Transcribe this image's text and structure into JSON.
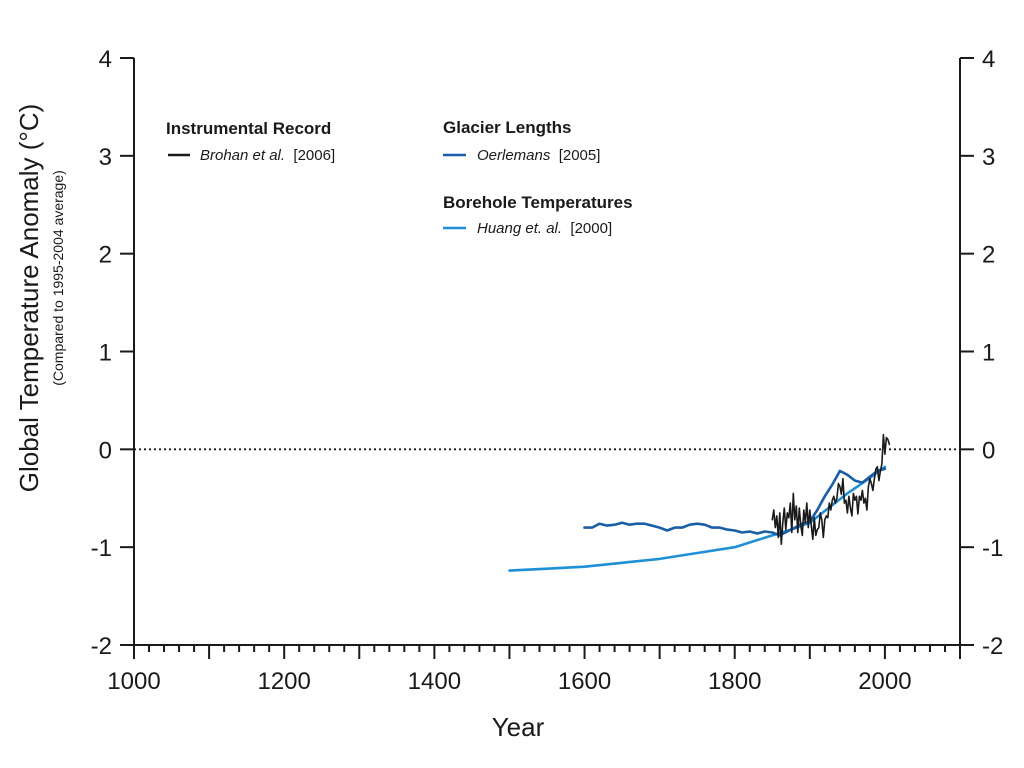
{
  "chart_data": {
    "type": "line",
    "xlabel": "Year",
    "ylabel": "Global Temperature Anomaly (°C)",
    "ylabel_note": "(Compared to 1995-2004 average)",
    "xlim": [
      1000,
      2100
    ],
    "ylim": [
      -2,
      4
    ],
    "x_ticks": [
      "1000",
      "1200",
      "1400",
      "1600",
      "1800",
      "2000"
    ],
    "y_ticks": [
      "-2",
      "-1",
      "0",
      "1",
      "2",
      "3",
      "4"
    ],
    "reference_line": {
      "y": 0,
      "style": "dotted"
    },
    "grid": false,
    "legend_groups": [
      {
        "heading": "Instrumental Record",
        "author": "Brohan et al.",
        "ref": "[2006]",
        "series": "Instrumental Record"
      },
      {
        "heading": "Glacier Lengths",
        "author": "Oerlemans",
        "ref": "[2005]",
        "series": "Glacier Lengths"
      },
      {
        "heading": "Borehole Temperatures",
        "author": "Huang et. al.",
        "ref": "[2000]",
        "series": "Borehole Temperatures"
      }
    ],
    "series": [
      {
        "name": "Borehole Temperatures",
        "color": "#1f8fd6",
        "x": [
          1500,
          1550,
          1600,
          1650,
          1700,
          1750,
          1800,
          1825,
          1850,
          1875,
          1900,
          1925,
          1950,
          1975,
          2000
        ],
        "y": [
          -1.24,
          -1.22,
          -1.2,
          -1.16,
          -1.12,
          -1.06,
          -1.0,
          -0.94,
          -0.88,
          -0.82,
          -0.75,
          -0.6,
          -0.45,
          -0.32,
          -0.18
        ]
      },
      {
        "name": "Glacier Lengths",
        "color": "#1b5ea8",
        "x": [
          1600,
          1610,
          1620,
          1630,
          1640,
          1650,
          1660,
          1670,
          1680,
          1690,
          1700,
          1710,
          1720,
          1730,
          1740,
          1750,
          1760,
          1770,
          1780,
          1790,
          1800,
          1810,
          1820,
          1830,
          1840,
          1850,
          1860,
          1870,
          1880,
          1890,
          1900,
          1910,
          1920,
          1930,
          1940,
          1950,
          1960,
          1970,
          1980,
          1990,
          2000
        ],
        "y": [
          -0.8,
          -0.8,
          -0.76,
          -0.78,
          -0.77,
          -0.75,
          -0.77,
          -0.76,
          -0.76,
          -0.78,
          -0.8,
          -0.83,
          -0.8,
          -0.8,
          -0.77,
          -0.76,
          -0.77,
          -0.8,
          -0.8,
          -0.82,
          -0.83,
          -0.85,
          -0.84,
          -0.86,
          -0.84,
          -0.85,
          -0.88,
          -0.84,
          -0.8,
          -0.76,
          -0.74,
          -0.62,
          -0.48,
          -0.36,
          -0.22,
          -0.26,
          -0.32,
          -0.34,
          -0.28,
          -0.22,
          -0.2
        ]
      },
      {
        "name": "Instrumental Record",
        "color": "#1a1a1a",
        "x": [
          1850,
          1852,
          1854,
          1856,
          1858,
          1860,
          1862,
          1864,
          1866,
          1868,
          1870,
          1872,
          1874,
          1876,
          1878,
          1880,
          1882,
          1884,
          1886,
          1888,
          1890,
          1892,
          1894,
          1896,
          1898,
          1900,
          1902,
          1904,
          1906,
          1908,
          1910,
          1912,
          1914,
          1916,
          1918,
          1920,
          1922,
          1924,
          1926,
          1928,
          1930,
          1932,
          1934,
          1936,
          1938,
          1940,
          1942,
          1944,
          1946,
          1948,
          1950,
          1952,
          1954,
          1956,
          1958,
          1960,
          1962,
          1964,
          1966,
          1968,
          1970,
          1972,
          1974,
          1976,
          1978,
          1980,
          1982,
          1984,
          1986,
          1988,
          1990,
          1992,
          1994,
          1996,
          1998,
          2000,
          2002,
          2004,
          2006
        ],
        "y": [
          -0.72,
          -0.62,
          -0.8,
          -0.68,
          -0.9,
          -0.65,
          -0.97,
          -0.75,
          -0.6,
          -0.82,
          -0.65,
          -0.7,
          -0.55,
          -0.85,
          -0.45,
          -0.72,
          -0.58,
          -0.85,
          -0.6,
          -0.78,
          -0.88,
          -0.62,
          -0.75,
          -0.55,
          -0.8,
          -0.62,
          -0.78,
          -0.92,
          -0.7,
          -0.88,
          -0.82,
          -0.8,
          -0.65,
          -0.72,
          -0.9,
          -0.72,
          -0.68,
          -0.7,
          -0.55,
          -0.62,
          -0.52,
          -0.48,
          -0.55,
          -0.5,
          -0.35,
          -0.38,
          -0.46,
          -0.3,
          -0.55,
          -0.52,
          -0.65,
          -0.48,
          -0.6,
          -0.68,
          -0.45,
          -0.52,
          -0.48,
          -0.66,
          -0.48,
          -0.52,
          -0.42,
          -0.55,
          -0.5,
          -0.62,
          -0.38,
          -0.3,
          -0.35,
          -0.42,
          -0.3,
          -0.2,
          -0.18,
          -0.32,
          -0.22,
          -0.15,
          0.15,
          -0.05,
          0.12,
          0.1,
          0.05
        ]
      }
    ]
  }
}
